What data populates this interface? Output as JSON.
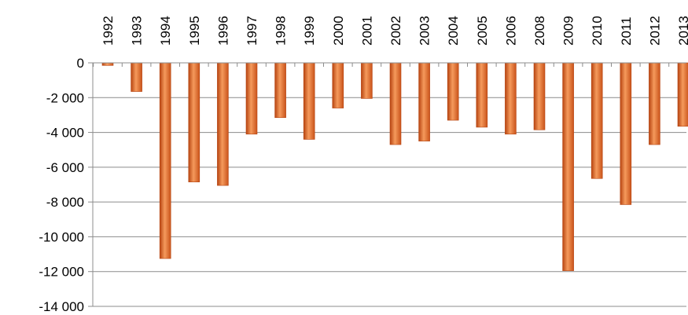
{
  "chart_data": {
    "type": "bar",
    "title": "",
    "xlabel": "",
    "ylabel": "",
    "ylim": [
      -14000,
      0
    ],
    "yticks": [
      0,
      -2000,
      -4000,
      -6000,
      -8000,
      -10000,
      -12000,
      -14000
    ],
    "ytick_labels": [
      "0",
      "-2 000",
      "-4 000",
      "-6 000",
      "-8 000",
      "-10 000",
      "-12 000",
      "-14 000"
    ],
    "categories": [
      "1992",
      "1993",
      "1994",
      "1995",
      "1996",
      "1997",
      "1998",
      "1999",
      "2000",
      "2001",
      "2002",
      "2003",
      "2004",
      "2005",
      "2006",
      "2008",
      "2009",
      "2010",
      "2011",
      "2012",
      "2013"
    ],
    "values": [
      -150,
      -1650,
      -11250,
      -6850,
      -7050,
      -4100,
      -3150,
      -4400,
      -2600,
      -2050,
      -4700,
      -4500,
      -3300,
      -3700,
      -4100,
      -3850,
      -11950,
      -6650,
      -8150,
      -4700,
      -3650
    ],
    "grid": true,
    "legend": "none",
    "colors": {
      "bar": "#e8661f",
      "bar_light": "#f59a5c",
      "bar_dark": "#b74512",
      "grid": "#8c8c8c",
      "axis": "#8c8c8c"
    }
  }
}
